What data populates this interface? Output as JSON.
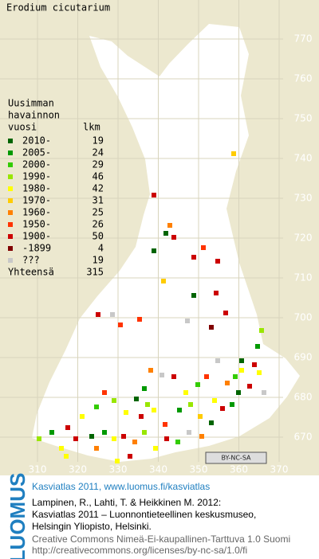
{
  "map": {
    "title": "Erodium cicutarium",
    "northing_labels": [
      770,
      760,
      750,
      740,
      730,
      720,
      710,
      700,
      690,
      680,
      670
    ],
    "easting_labels": [
      310,
      320,
      330,
      340,
      350,
      360,
      370
    ],
    "license_badge": "BY-NC-SA"
  },
  "legend": {
    "heading": [
      "Uusimman",
      "havainnon",
      "vuosi"
    ],
    "count_heading": "lkm",
    "items": [
      {
        "label": "2010-",
        "count": 19,
        "color": "#006400"
      },
      {
        "label": "2005-",
        "count": 24,
        "color": "#009900"
      },
      {
        "label": "2000-",
        "count": 29,
        "color": "#33cc00"
      },
      {
        "label": "1990-",
        "count": 46,
        "color": "#99e600"
      },
      {
        "label": "1980-",
        "count": 42,
        "color": "#ffff00"
      },
      {
        "label": "1970-",
        "count": 31,
        "color": "#ffcc00"
      },
      {
        "label": "1960-",
        "count": 25,
        "color": "#ff8000"
      },
      {
        "label": "1950-",
        "count": 26,
        "color": "#ff3300"
      },
      {
        "label": "1900-",
        "count": 50,
        "color": "#cc0000"
      },
      {
        "label": "-1899",
        "count": 4,
        "color": "#800000"
      },
      {
        "label": "???",
        "count": 19,
        "color": "#c8c8c8"
      }
    ],
    "total_label": "Yhteensä",
    "total": 315
  },
  "footer": {
    "logo": "LUOMUS",
    "headline": "Kasviatlas 2011, www.luomus.fi/kasviatlas",
    "citation": [
      "Lampinen, R., Lahti, T. & Heikkinen M. 2012:",
      "Kasviatlas 2011 – Luonnontieteellinen keskusmuseo,",
      "Helsingin Yliopisto, Helsinki."
    ],
    "license": [
      "Creative Commons Nimeä-Ei-kaupallinen-Tarttuva 1.0 Suomi",
      "http://creativecommons.org/licenses/by-nc-sa/1.0/fi"
    ]
  }
}
